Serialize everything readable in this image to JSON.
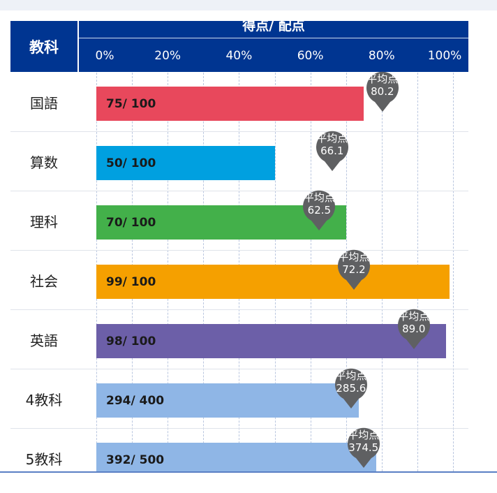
{
  "chart_data": {
    "type": "bar",
    "orientation": "horizontal",
    "header": {
      "subject": "教科",
      "score": "得点/ 配点"
    },
    "xaxis": {
      "ticks": [
        "0%",
        "20%",
        "40%",
        "60%",
        "80%",
        "100%"
      ],
      "range": [
        0,
        100
      ],
      "unit": "%"
    },
    "avg_label": "平均点",
    "rows": [
      {
        "subject": "国語",
        "score": 75,
        "max": 100,
        "label": "75/ 100",
        "avg": 80.2,
        "avg_text": "80.2",
        "color": "#e8485c"
      },
      {
        "subject": "算数",
        "score": 50,
        "max": 100,
        "label": "50/ 100",
        "avg": 66.1,
        "avg_text": "66.1",
        "color": "#00a0e0"
      },
      {
        "subject": "理科",
        "score": 70,
        "max": 100,
        "label": "70/ 100",
        "avg": 62.5,
        "avg_text": "62.5",
        "color": "#43b04a"
      },
      {
        "subject": "社会",
        "score": 99,
        "max": 100,
        "label": "99/ 100",
        "avg": 72.2,
        "avg_text": "72.2",
        "color": "#f5a000"
      },
      {
        "subject": "英語",
        "score": 98,
        "max": 100,
        "label": "98/ 100",
        "avg": 89.0,
        "avg_text": "89.0",
        "color": "#6c5fa8"
      },
      {
        "subject": "4教科",
        "score": 294,
        "max": 400,
        "label": "294/ 400",
        "avg": 285.6,
        "avg_text": "285.6",
        "color": "#8fb6e6"
      },
      {
        "subject": "5教科",
        "score": 392,
        "max": 500,
        "label": "392/ 500",
        "avg": 374.5,
        "avg_text": "374.5",
        "color": "#8fb6e6"
      }
    ]
  }
}
